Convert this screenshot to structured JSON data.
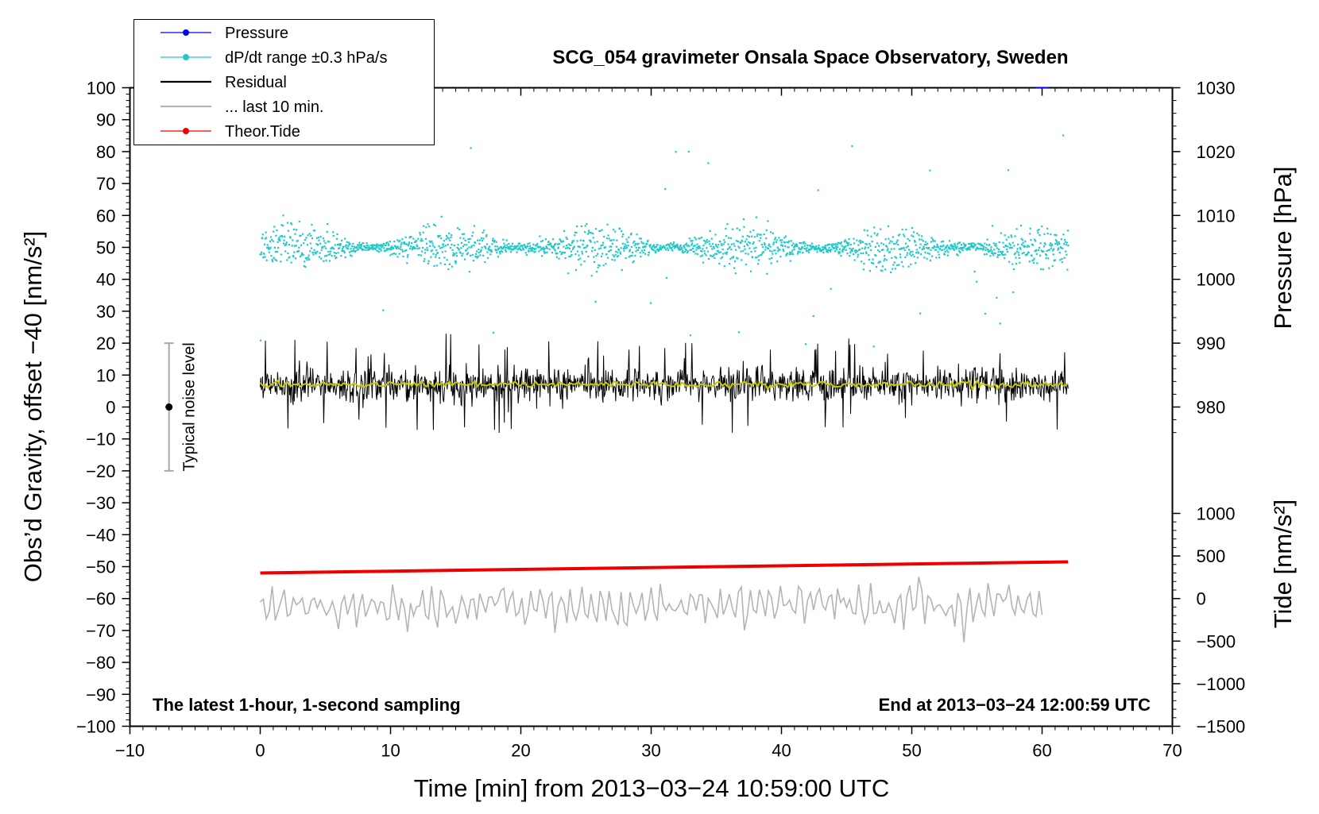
{
  "chart_data": {
    "type": "scatter+line",
    "title": "SCG_054 gravimeter Onsala Space Observatory, Sweden",
    "xlabel": "Time [min] from 2013−03−24 10:59:00 UTC",
    "ylabel_left": "Obs’d Gravity, offset −40 [nm/s²]",
    "ylabel_right_top": "Pressure [hPa]",
    "ylabel_right_bottom": "Tide [nm/s²]",
    "xlim": [
      -10,
      70
    ],
    "ylim": [
      -100,
      100
    ],
    "x_ticks": [
      -10,
      0,
      10,
      20,
      30,
      40,
      50,
      60,
      70
    ],
    "x_tick_labels": [
      "−10",
      "0",
      "10",
      "20",
      "30",
      "40",
      "50",
      "60",
      "70"
    ],
    "y_ticks": [
      100,
      90,
      80,
      70,
      60,
      50,
      40,
      30,
      20,
      10,
      0,
      -10,
      -20,
      -30,
      -40,
      -50,
      -60,
      -70,
      -80,
      -90,
      -100
    ],
    "y_tick_labels": [
      "100",
      "90",
      "80",
      "70",
      "60",
      "50",
      "40",
      "30",
      "20",
      "10",
      "0",
      "−10",
      "−20",
      "−30",
      "−40",
      "−50",
      "−60",
      "−70",
      "−80",
      "−90",
      "−100"
    ],
    "pressure_ticks": [
      1030,
      1020,
      1010,
      1000,
      990,
      980
    ],
    "pressure_tick_labels": [
      "1030",
      "1020",
      "1010",
      "1000",
      "990",
      "980"
    ],
    "pressure_axis_map": {
      "range": [
        970,
        1030
      ],
      "left_axis_range": [
        -20,
        100
      ]
    },
    "tide_ticks": [
      1000,
      500,
      0,
      -500,
      -1000,
      -1500
    ],
    "tide_tick_labels": [
      "1000",
      "500",
      "0",
      "−500",
      "−1000",
      "−1500"
    ],
    "tide_axis_map": {
      "range": [
        -1500,
        1000
      ],
      "left_axis_range": [
        -100,
        -33.33
      ]
    },
    "annotation_left": "The latest 1-hour, 1-second sampling",
    "annotation_right": "End at 2013−03−24 12:00:59 UTC",
    "noise_bar": {
      "label": "Typical noise level",
      "x": -7,
      "y_center": 0,
      "y_low": -20,
      "y_high": 20
    },
    "legend": [
      {
        "label": "Pressure",
        "color": "#0000ee",
        "style": "line-dot"
      },
      {
        "label": "dP/dt range ±0.3 hPa/s",
        "color": "#20c8c8",
        "style": "line-dot"
      },
      {
        "label": "Residual",
        "color": "#000000",
        "style": "line"
      },
      {
        "label": "... last 10 min.",
        "color": "#b4b4b4",
        "style": "line"
      },
      {
        "label": "Theor.Tide",
        "color": "#ee0000",
        "style": "line-dot"
      }
    ],
    "series": [
      {
        "name": "dP/dt range ±0.3 hPa/s",
        "type": "scatter",
        "color": "#20c8c8",
        "x_range": [
          0,
          62
        ],
        "center": 50,
        "spread": 4,
        "outlier_range": [
          18,
          86
        ],
        "points": 1900
      },
      {
        "name": "Residual",
        "type": "line",
        "color": "#000000",
        "x_range": [
          0,
          62
        ],
        "center": 7,
        "range": [
          -9,
          23
        ]
      },
      {
        "name": "Residual (smoothed)",
        "type": "line",
        "color": "#c8c800",
        "x_range": [
          0,
          62
        ],
        "center": 7,
        "range": [
          5,
          9
        ]
      },
      {
        "name": "... last 10 min.",
        "type": "line",
        "color": "#b4b4b4",
        "x_range": [
          0,
          60
        ],
        "center": -62,
        "range": [
          -76,
          -50
        ]
      },
      {
        "name": "Theor.Tide",
        "type": "line",
        "color": "#ee0000",
        "x": [
          0,
          62
        ],
        "y": [
          -52,
          -48.5
        ]
      },
      {
        "name": "Pressure",
        "type": "line",
        "color": "#0000ee",
        "x": [
          59.5,
          60.5
        ],
        "y": [
          100,
          100
        ]
      }
    ]
  }
}
